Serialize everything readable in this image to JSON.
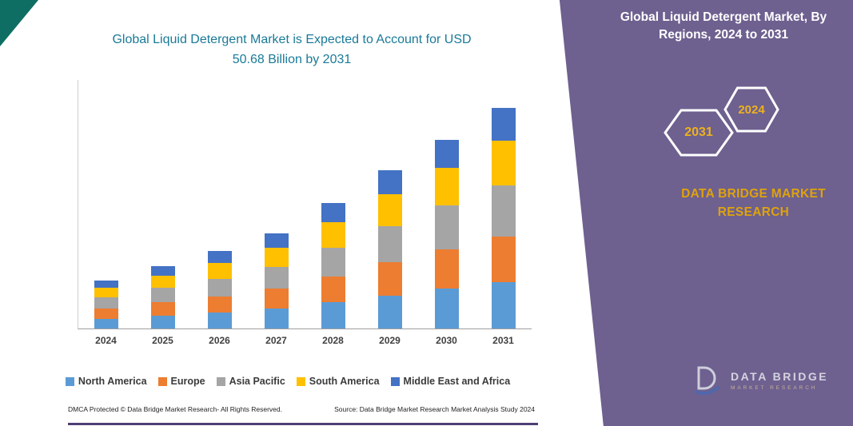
{
  "colors": {
    "title_teal": "#1A7A99",
    "panel_purple": "#6E608F",
    "corner_teal": "#0E6E63",
    "brand_gold": "#DFA30B",
    "hexagon_year_gold": "#EDB21E",
    "bottom_line_purple": "#4F3F75",
    "axis_label_gray": "#404040"
  },
  "chart_data": {
    "type": "bar",
    "stacked": true,
    "title": "Global Liquid Detergent Market is Expected to Account for USD 50.68 Billion by 2031",
    "title_line1": "Global Liquid Detergent Market is Expected to Account for USD",
    "title_line2": "50.68 Billion by 2031",
    "unit": "USD Billion",
    "categories": [
      "2024",
      "2025",
      "2026",
      "2027",
      "2028",
      "2029",
      "2030",
      "2031"
    ],
    "series": [
      {
        "name": "North America",
        "color": "#5B9BD5",
        "values": [
          2.3,
          3.0,
          3.7,
          4.6,
          6.0,
          7.6,
          9.1,
          10.6
        ]
      },
      {
        "name": "Europe",
        "color": "#ED7D31",
        "values": [
          2.3,
          3.0,
          3.7,
          4.6,
          6.0,
          7.6,
          9.1,
          10.6
        ]
      },
      {
        "name": "Asia Pacific",
        "color": "#A5A5A5",
        "values": [
          2.5,
          3.3,
          4.1,
          5.0,
          6.6,
          8.4,
          10.0,
          11.7
        ]
      },
      {
        "name": "South America",
        "color": "#FFC000",
        "values": [
          2.2,
          2.9,
          3.6,
          4.4,
          5.8,
          7.3,
          8.7,
          10.2
        ]
      },
      {
        "name": "Middle East and Africa",
        "color": "#4472C4",
        "values": [
          1.7,
          2.1,
          2.7,
          3.3,
          4.4,
          5.5,
          6.4,
          7.58
        ]
      }
    ],
    "ylim": [
      0,
      50.68
    ],
    "gridlines": false,
    "legend_position": "bottom"
  },
  "panel": {
    "title": "Global Liquid Detergent Market, By Regions, 2024 to 2031",
    "hexagon_years": [
      "2031",
      "2024"
    ],
    "brand_line1": "DATA BRIDGE MARKET",
    "brand_line2": "RESEARCH",
    "logo_name": "DATA BRIDGE",
    "logo_subtitle": "MARKET RESEARCH"
  },
  "footer": {
    "dmca": "DMCA Protected © Data Bridge Market Research-  All Rights Reserved.",
    "source": "Source: Data Bridge Market Research  Market Analysis Study 2024"
  }
}
